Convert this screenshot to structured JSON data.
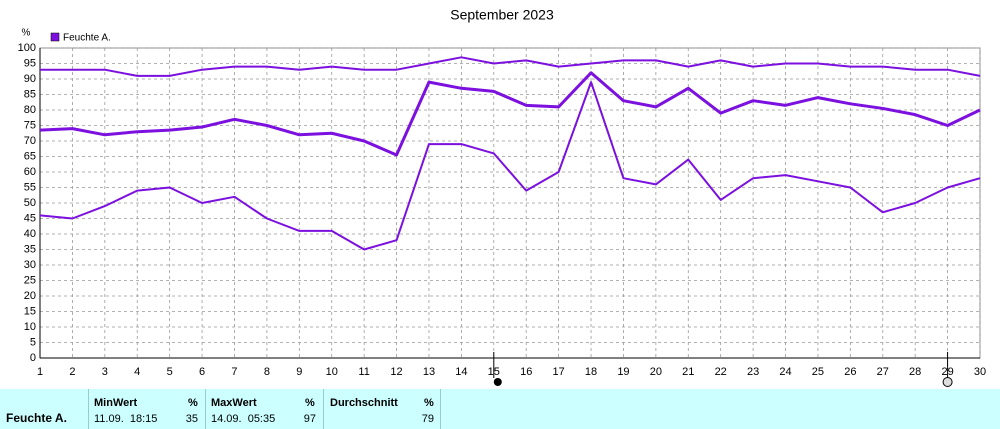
{
  "chart_data": {
    "type": "line",
    "title": "September 2023",
    "ylabel": "%",
    "legend": "Feuchte A.",
    "legend_position": "top-left",
    "x": [
      1,
      2,
      3,
      4,
      5,
      6,
      7,
      8,
      9,
      10,
      11,
      12,
      13,
      14,
      15,
      16,
      17,
      18,
      19,
      20,
      21,
      22,
      23,
      24,
      25,
      26,
      27,
      28,
      29,
      30
    ],
    "xlim": [
      1,
      30
    ],
    "xticks": [
      1,
      2,
      3,
      4,
      5,
      6,
      7,
      8,
      9,
      10,
      11,
      12,
      13,
      14,
      15,
      16,
      17,
      18,
      19,
      20,
      21,
      22,
      23,
      24,
      25,
      26,
      27,
      28,
      29,
      30
    ],
    "ylim": [
      0,
      100
    ],
    "yticks": [
      0,
      5,
      10,
      15,
      20,
      25,
      30,
      35,
      40,
      45,
      50,
      55,
      60,
      65,
      70,
      75,
      80,
      85,
      90,
      95,
      100
    ],
    "grid": true,
    "series": [
      {
        "color": "#7b10df",
        "values": [
          93,
          93,
          93,
          91,
          91,
          93,
          94,
          94,
          93,
          94,
          93,
          93,
          95,
          97,
          95,
          96,
          94,
          95,
          96,
          96,
          94,
          96,
          94,
          95,
          95,
          94,
          94,
          93,
          93,
          91
        ]
      },
      {
        "color": "#7b10df",
        "values": [
          73.5,
          74,
          72,
          73,
          73.5,
          74.5,
          77,
          75,
          72,
          72.5,
          70,
          65.5,
          89,
          87,
          86,
          81.5,
          81,
          92,
          83,
          81,
          87,
          79,
          83,
          81.5,
          84,
          82,
          80.5,
          78.5,
          75,
          80
        ]
      },
      {
        "color": "#7b10df",
        "values": [
          46,
          45,
          49,
          54,
          55,
          50,
          52,
          45,
          41,
          41,
          35,
          38,
          69,
          69,
          66,
          54,
          60,
          89,
          58,
          56,
          64,
          51,
          58,
          59,
          57,
          55,
          47,
          50,
          55,
          58
        ]
      }
    ]
  },
  "summary": {
    "row_label": "Feuchte A.",
    "columns": [
      {
        "title": "MinWert",
        "unit": "%",
        "time": "11.09.  18:15",
        "value": 35
      },
      {
        "title": "MaxWert",
        "unit": "%",
        "time": "14.09.  05:35",
        "value": 97
      },
      {
        "title": "Durchschnitt",
        "unit": "%",
        "value": 79
      }
    ]
  }
}
